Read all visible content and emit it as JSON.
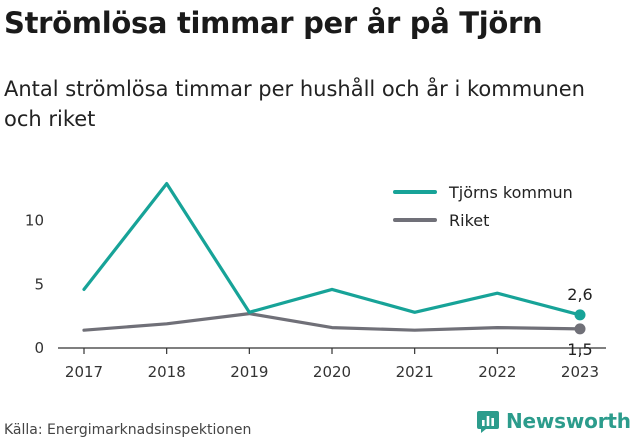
{
  "title": "Strömlösa timmar per år på Tjörn",
  "subtitle": "Antal strömlösa timmar per hushåll och år i kommunen och riket",
  "source": "Källa: Energimarknadsinspektionen",
  "brand": {
    "name": "Newsworthy",
    "icon": "bar-chart-icon",
    "color": "#2c9c8c"
  },
  "chart_data": {
    "type": "line",
    "x": [
      "2017",
      "2018",
      "2019",
      "2020",
      "2021",
      "2022",
      "2023"
    ],
    "series": [
      {
        "name": "Tjörns kommun",
        "color": "#17a398",
        "values": [
          4.6,
          12.9,
          2.8,
          4.6,
          2.8,
          4.3,
          2.6
        ],
        "end_label": "2,6"
      },
      {
        "name": "Riket",
        "color": "#707078",
        "values": [
          1.4,
          1.9,
          2.7,
          1.6,
          1.4,
          1.6,
          1.5
        ],
        "end_label": "1,5"
      }
    ],
    "yticks": [
      0,
      5,
      10
    ],
    "ylim": [
      0,
      13.5
    ],
    "grid": false,
    "legend": "top-right"
  }
}
